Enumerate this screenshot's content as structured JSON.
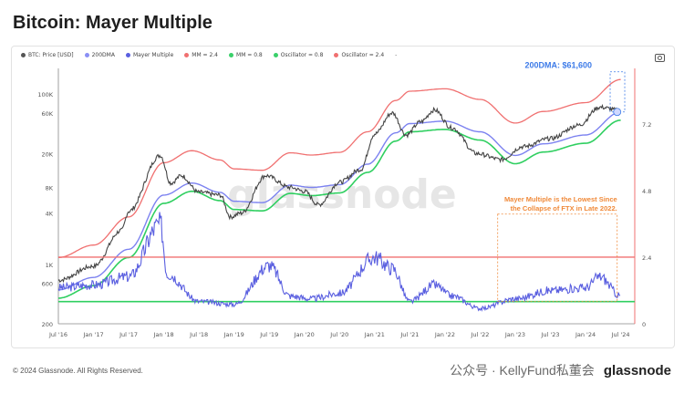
{
  "title": "Bitcoin: Mayer Multiple",
  "legend": [
    {
      "label": "BTC: Price [USD]",
      "color": "#555555"
    },
    {
      "label": "200DMA",
      "color": "#8a8ff5"
    },
    {
      "label": "Mayer Multiple",
      "color": "#5a5fe0"
    },
    {
      "label": "MM = 2.4",
      "color": "#f07070"
    },
    {
      "label": "MM = 0.8",
      "color": "#3ad06a"
    },
    {
      "label": "Oscillator = 0.8",
      "color": "#3ad06a"
    },
    {
      "label": "Oscillator = 2.4",
      "color": "#f07070"
    }
  ],
  "legend_more": "-",
  "footer": {
    "copyright": "© 2024 Glassnode. All Rights Reserved.",
    "wechat": "公众号 · KellyFund私董会",
    "brand": "glassnode"
  },
  "watermark": "glassnode",
  "colors": {
    "price": "#444444",
    "dma": "#7c82f0",
    "mm": "#5a5fe0",
    "red": "#f07070",
    "green": "#2fcf60",
    "orange": "#f08a3a",
    "blue_ann": "#3d7be8"
  },
  "chart_data": {
    "type": "line",
    "x_ticks": [
      "Jul '16",
      "Jan '17",
      "Jul '17",
      "Jan '18",
      "Jul '18",
      "Jan '19",
      "Jul '19",
      "Jan '20",
      "Jul '20",
      "Jan '21",
      "Jul '21",
      "Jan '22",
      "Jul '22",
      "Jan '23",
      "Jul '23",
      "Jan '24",
      "Jul '24"
    ],
    "y_left_ticks": [
      "100K",
      "60K",
      "20K",
      "8K",
      "4K",
      "1K",
      "600",
      "200"
    ],
    "y_right_ticks": [
      "7.2",
      "4.8",
      "2.4",
      "0"
    ],
    "y_left_scale": "log",
    "ylim_left": [
      200,
      200000
    ],
    "ylim_right": [
      0,
      9.2
    ],
    "annotations": [
      {
        "text": "200DMA: $61,600",
        "color": "#3d7be8"
      },
      {
        "text": "Mayer Multiple is the Lowest Since the Collapse of FTX in Late 2022.",
        "color": "#f08a3a"
      }
    ],
    "series": [
      {
        "name": "BTC: Price [USD]",
        "x": [
          "Jul '16",
          "Jan '17",
          "Jul '17",
          "Dec '17",
          "Jul '18",
          "Jan '19",
          "Jul '19",
          "Jan '20",
          "Jul '20",
          "Jan '21",
          "Apr '21",
          "Jul '21",
          "Nov '21",
          "Jul '22",
          "Jan '23",
          "Jul '23",
          "Jan '24",
          "Mar '24",
          "Jul '24"
        ],
        "values": [
          650,
          950,
          2500,
          19000,
          7000,
          3600,
          11000,
          7200,
          9200,
          34000,
          60000,
          33000,
          65000,
          20000,
          17000,
          30000,
          43000,
          70000,
          64000
        ]
      },
      {
        "name": "200DMA",
        "x": [
          "Jul '16",
          "Jan '17",
          "Jul '17",
          "Jan '18",
          "Jul '18",
          "Jan '19",
          "Jul '19",
          "Jan '20",
          "Jul '20",
          "Jan '21",
          "Jul '21",
          "Jan '22",
          "Jul '22",
          "Jan '23",
          "Jul '23",
          "Jan '24",
          "Jul '24"
        ],
        "values": [
          500,
          700,
          1500,
          6500,
          9000,
          5500,
          5300,
          8500,
          8600,
          15000,
          45000,
          48000,
          36000,
          19000,
          26000,
          33000,
          61600
        ]
      },
      {
        "name": "Mayer Multiple",
        "x": [
          "Jul '16",
          "Jan '17",
          "Jul '17",
          "Dec '17",
          "Jul '18",
          "Jan '19",
          "Jul '19",
          "Jan '20",
          "Jul '20",
          "Jan '21",
          "Apr '21",
          "Jul '21",
          "Nov '21",
          "Jul '22",
          "Jan '23",
          "Jul '23",
          "Jan '24",
          "Mar '24",
          "Jul '24"
        ],
        "values": [
          1.3,
          1.4,
          1.7,
          3.6,
          0.8,
          0.7,
          2.1,
          0.9,
          1.1,
          2.4,
          2.0,
          0.8,
          1.4,
          0.55,
          0.9,
          1.2,
          1.3,
          1.7,
          1.0
        ]
      },
      {
        "name": "MM = 2.4",
        "x": [
          "Jul '16",
          "Jul '24"
        ],
        "values": [
          1200,
          148000
        ]
      },
      {
        "name": "MM = 0.8",
        "x": [
          "Jul '16",
          "Jul '24"
        ],
        "values": [
          400,
          49300
        ]
      },
      {
        "name": "Oscillator = 0.8",
        "values": [
          0.8,
          0.8
        ]
      },
      {
        "name": "Oscillator = 2.4",
        "values": [
          2.4,
          2.4
        ]
      }
    ]
  }
}
